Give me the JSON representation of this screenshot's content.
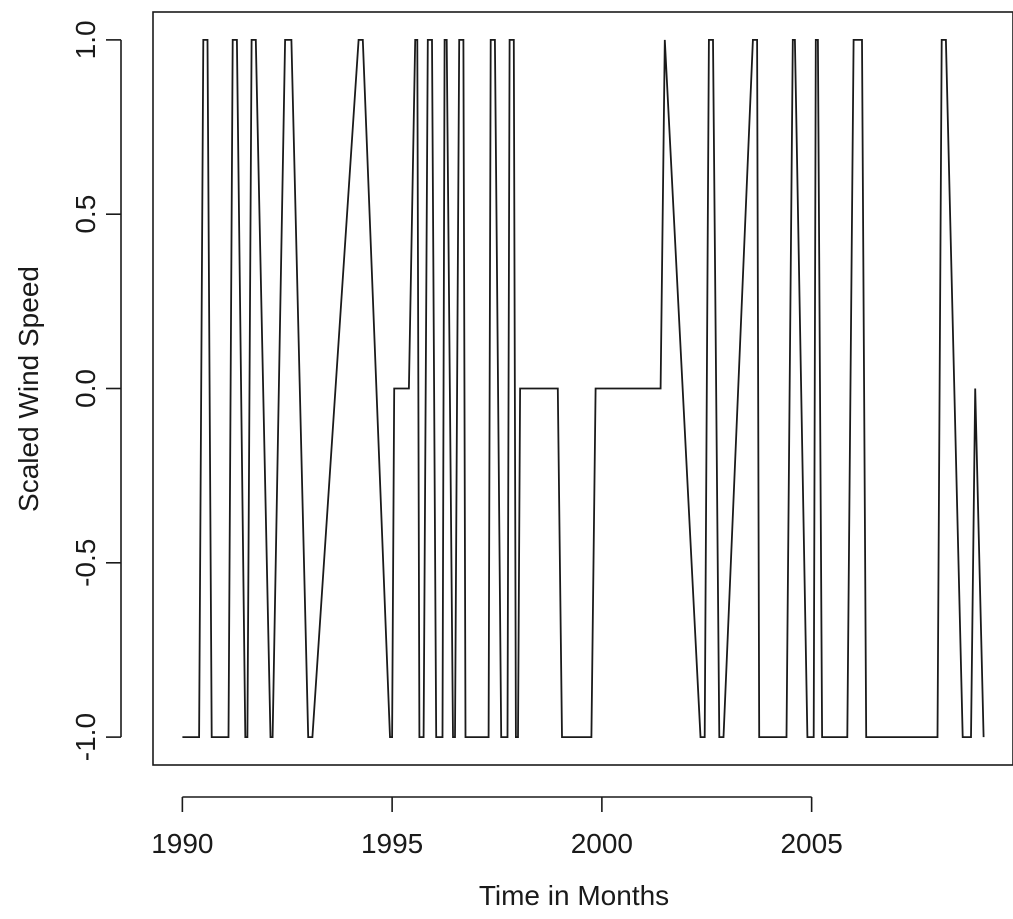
{
  "chart_data": {
    "type": "line",
    "title": "",
    "xlabel": "Time in Months",
    "ylabel": "Scaled Wind Speed",
    "xlim": [
      1989.3,
      2009.8
    ],
    "ylim": [
      -1.08,
      1.08
    ],
    "x_ticks": [
      1990,
      1995,
      2000,
      2005
    ],
    "x_tick_labels": [
      "1990",
      "1995",
      "2000",
      "2005"
    ],
    "y_ticks": [
      -1.0,
      -0.5,
      0.0,
      0.5,
      1.0
    ],
    "y_tick_labels": [
      "-1.0",
      "-0.5",
      "0.0",
      "0.5",
      "1.0"
    ],
    "grid": false,
    "legend": "none",
    "series": [
      {
        "x": [
          1990.0,
          1990.4,
          1990.5,
          1990.6,
          1990.7,
          1991.1,
          1991.2,
          1991.3,
          1991.5,
          1991.55,
          1991.65,
          1991.75,
          1992.1,
          1992.15,
          1992.45,
          1992.6,
          1993.0,
          1993.1,
          1994.2,
          1994.3,
          1994.95,
          1995.0,
          1995.05,
          1995.4,
          1995.55,
          1995.6,
          1995.65,
          1995.75,
          1995.85,
          1995.95,
          1996.05,
          1996.2,
          1996.25,
          1996.3,
          1996.45,
          1996.5,
          1996.6,
          1996.7,
          1996.75,
          1997.3,
          1997.35,
          1997.45,
          1997.6,
          1997.75,
          1997.8,
          1997.9,
          1997.95,
          1998.0,
          1998.05,
          1998.95,
          1999.05,
          1999.75,
          1999.85,
          2001.4,
          2001.5,
          2001.5,
          2002.35,
          2002.45,
          2002.55,
          2002.65,
          2002.8,
          2002.9,
          2003.6,
          2003.7,
          2003.75,
          2004.4,
          2004.55,
          2004.6,
          2004.9,
          2005.05,
          2005.1,
          2005.15,
          2005.25,
          2005.85,
          2006.0,
          2006.2,
          2006.3,
          2008.0,
          2008.1,
          2008.2,
          2008.6,
          2008.8,
          2008.9,
          2009.1
        ],
        "y": [
          -1,
          -1,
          1,
          1,
          -1,
          -1,
          1,
          1,
          -1,
          -1,
          1,
          1,
          -1,
          -1,
          1,
          1,
          -1,
          -1,
          1,
          1,
          -1,
          -1,
          0,
          0,
          1,
          1,
          -1,
          -1,
          1,
          1,
          -1,
          -1,
          1,
          1,
          -1,
          -1,
          1,
          1,
          -1,
          -1,
          1,
          1,
          -1,
          -1,
          1,
          1,
          -1,
          -1,
          0,
          0,
          -1,
          -1,
          0,
          0,
          1,
          1,
          -1,
          -1,
          1,
          1,
          -1,
          -1,
          1,
          1,
          -1,
          -1,
          1,
          1,
          -1,
          -1,
          1,
          1,
          -1,
          -1,
          1,
          1,
          -1,
          -1,
          1,
          1,
          -1,
          -1,
          0,
          -1
        ]
      }
    ]
  }
}
